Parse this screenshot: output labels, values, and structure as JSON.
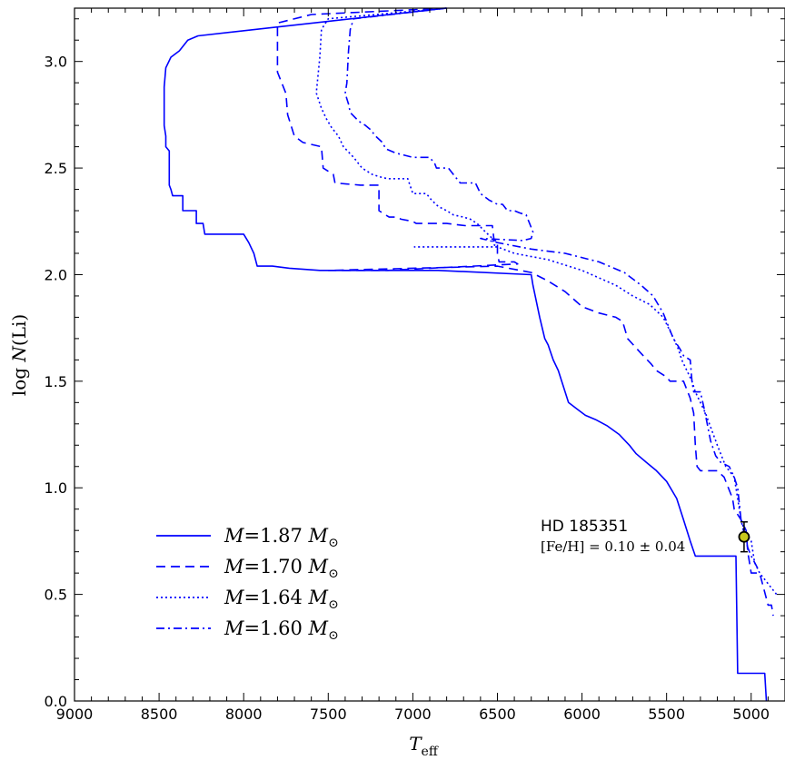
{
  "chart_data": {
    "type": "line",
    "xlabel": "T_eff",
    "ylabel": "log N(Li)",
    "xlim": [
      9000,
      4800
    ],
    "ylim": [
      0.0,
      3.25
    ],
    "x_inverted": true,
    "grid": false,
    "legend_position": "lower-left",
    "x_ticks": [
      "9000",
      "8500",
      "8000",
      "7500",
      "7000",
      "6500",
      "6000",
      "5500",
      "5000"
    ],
    "y_ticks": [
      "0.0",
      "0.5",
      "1.0",
      "1.5",
      "2.0",
      "2.5",
      "3.0"
    ],
    "series": [
      {
        "name": "M=1.87 M☉",
        "color": "#0000ff",
        "style": "solid",
        "points": [
          [
            6800,
            3.25
          ],
          [
            8270,
            3.12
          ],
          [
            8330,
            3.1
          ],
          [
            8380,
            3.05
          ],
          [
            8430,
            3.02
          ],
          [
            8460,
            2.97
          ],
          [
            8470,
            2.88
          ],
          [
            8470,
            2.7
          ],
          [
            8460,
            2.65
          ],
          [
            8460,
            2.6
          ],
          [
            8440,
            2.58
          ],
          [
            8440,
            2.42
          ],
          [
            8430,
            2.4
          ],
          [
            8420,
            2.37
          ],
          [
            8360,
            2.37
          ],
          [
            8360,
            2.3
          ],
          [
            8280,
            2.3
          ],
          [
            8280,
            2.24
          ],
          [
            8240,
            2.24
          ],
          [
            8230,
            2.19
          ],
          [
            8120,
            2.19
          ],
          [
            8000,
            2.19
          ],
          [
            7970,
            2.15
          ],
          [
            7940,
            2.1
          ],
          [
            7920,
            2.04
          ],
          [
            7830,
            2.04
          ],
          [
            7730,
            2.03
          ],
          [
            7550,
            2.02
          ],
          [
            6850,
            2.02
          ],
          [
            6300,
            2.0
          ],
          [
            6290,
            1.95
          ],
          [
            6250,
            1.8
          ],
          [
            6220,
            1.7
          ],
          [
            6200,
            1.67
          ],
          [
            6170,
            1.6
          ],
          [
            6140,
            1.55
          ],
          [
            6120,
            1.5
          ],
          [
            6100,
            1.45
          ],
          [
            6080,
            1.4
          ],
          [
            6030,
            1.37
          ],
          [
            5980,
            1.34
          ],
          [
            5920,
            1.32
          ],
          [
            5850,
            1.29
          ],
          [
            5780,
            1.25
          ],
          [
            5720,
            1.2
          ],
          [
            5700,
            1.18
          ],
          [
            5680,
            1.16
          ],
          [
            5620,
            1.12
          ],
          [
            5560,
            1.08
          ],
          [
            5500,
            1.03
          ],
          [
            5440,
            0.95
          ],
          [
            5400,
            0.85
          ],
          [
            5360,
            0.75
          ],
          [
            5330,
            0.68
          ],
          [
            5090,
            0.68
          ],
          [
            5080,
            0.13
          ],
          [
            4920,
            0.13
          ],
          [
            4910,
            0.0
          ]
        ]
      },
      {
        "name": "M=1.70 M☉",
        "color": "#0000ff",
        "style": "dashed",
        "points": [
          [
            6800,
            3.25
          ],
          [
            7600,
            3.22
          ],
          [
            7800,
            3.18
          ],
          [
            7800,
            2.95
          ],
          [
            7750,
            2.85
          ],
          [
            7740,
            2.75
          ],
          [
            7700,
            2.65
          ],
          [
            7650,
            2.62
          ],
          [
            7540,
            2.6
          ],
          [
            7530,
            2.5
          ],
          [
            7470,
            2.47
          ],
          [
            7460,
            2.43
          ],
          [
            7310,
            2.42
          ],
          [
            7200,
            2.42
          ],
          [
            7200,
            2.3
          ],
          [
            7140,
            2.27
          ],
          [
            7090,
            2.27
          ],
          [
            7070,
            2.26
          ],
          [
            7000,
            2.25
          ],
          [
            6980,
            2.24
          ],
          [
            6800,
            2.24
          ],
          [
            6690,
            2.23
          ],
          [
            6530,
            2.23
          ],
          [
            6520,
            2.16
          ],
          [
            6500,
            2.16
          ],
          [
            6500,
            2.1
          ],
          [
            6490,
            2.06
          ],
          [
            6400,
            2.06
          ],
          [
            6380,
            2.05
          ],
          [
            6900,
            2.03
          ],
          [
            7150,
            2.02
          ],
          [
            7500,
            2.02
          ],
          [
            6500,
            2.04
          ],
          [
            6300,
            2.01
          ],
          [
            6200,
            1.97
          ],
          [
            6100,
            1.92
          ],
          [
            6000,
            1.85
          ],
          [
            5900,
            1.82
          ],
          [
            5800,
            1.8
          ],
          [
            5760,
            1.78
          ],
          [
            5730,
            1.7
          ],
          [
            5650,
            1.63
          ],
          [
            5590,
            1.58
          ],
          [
            5560,
            1.55
          ],
          [
            5500,
            1.52
          ],
          [
            5480,
            1.5
          ],
          [
            5400,
            1.5
          ],
          [
            5360,
            1.42
          ],
          [
            5340,
            1.35
          ],
          [
            5330,
            1.2
          ],
          [
            5320,
            1.1
          ],
          [
            5300,
            1.08
          ],
          [
            5200,
            1.08
          ],
          [
            5160,
            1.05
          ],
          [
            5110,
            0.95
          ],
          [
            5100,
            0.9
          ],
          [
            5060,
            0.85
          ],
          [
            5030,
            0.8
          ],
          [
            5020,
            0.7
          ],
          [
            5000,
            0.6
          ],
          [
            4950,
            0.6
          ],
          [
            4900,
            0.45
          ],
          [
            4880,
            0.45
          ],
          [
            4870,
            0.4
          ]
        ]
      },
      {
        "name": "M=1.64 M☉",
        "color": "#0000ff",
        "style": "dotted",
        "points": [
          [
            6800,
            3.25
          ],
          [
            7500,
            3.2
          ],
          [
            7540,
            3.15
          ],
          [
            7550,
            3.02
          ],
          [
            7570,
            2.86
          ],
          [
            7570,
            2.85
          ],
          [
            7540,
            2.78
          ],
          [
            7510,
            2.73
          ],
          [
            7480,
            2.69
          ],
          [
            7440,
            2.65
          ],
          [
            7410,
            2.6
          ],
          [
            7350,
            2.55
          ],
          [
            7300,
            2.5
          ],
          [
            7240,
            2.47
          ],
          [
            7200,
            2.46
          ],
          [
            7150,
            2.45
          ],
          [
            7030,
            2.45
          ],
          [
            7000,
            2.38
          ],
          [
            6920,
            2.38
          ],
          [
            6890,
            2.35
          ],
          [
            6850,
            2.32
          ],
          [
            6800,
            2.3
          ],
          [
            6760,
            2.28
          ],
          [
            6700,
            2.27
          ],
          [
            6660,
            2.26
          ],
          [
            6620,
            2.24
          ],
          [
            6570,
            2.2
          ],
          [
            6530,
            2.17
          ],
          [
            6520,
            2.14
          ],
          [
            6500,
            2.13
          ],
          [
            6990,
            2.13
          ],
          [
            6500,
            2.13
          ],
          [
            6400,
            2.1
          ],
          [
            6200,
            2.07
          ],
          [
            6000,
            2.02
          ],
          [
            5800,
            1.95
          ],
          [
            5700,
            1.9
          ],
          [
            5600,
            1.86
          ],
          [
            5520,
            1.8
          ],
          [
            5470,
            1.72
          ],
          [
            5430,
            1.65
          ],
          [
            5410,
            1.6
          ],
          [
            5380,
            1.55
          ],
          [
            5350,
            1.5
          ],
          [
            5330,
            1.45
          ],
          [
            5300,
            1.4
          ],
          [
            5270,
            1.35
          ],
          [
            5200,
            1.2
          ],
          [
            5150,
            1.1
          ],
          [
            5100,
            1.05
          ],
          [
            5080,
            0.95
          ],
          [
            5060,
            0.85
          ],
          [
            5040,
            0.8
          ],
          [
            5000,
            0.75
          ],
          [
            4980,
            0.65
          ],
          [
            4950,
            0.6
          ],
          [
            4900,
            0.55
          ],
          [
            4850,
            0.5
          ]
        ]
      },
      {
        "name": "M=1.60 M☉",
        "color": "#0000ff",
        "style": "dashdot",
        "points": [
          [
            6800,
            3.25
          ],
          [
            7350,
            3.2
          ],
          [
            7370,
            3.15
          ],
          [
            7380,
            3.05
          ],
          [
            7390,
            2.9
          ],
          [
            7400,
            2.85
          ],
          [
            7380,
            2.8
          ],
          [
            7370,
            2.76
          ],
          [
            7320,
            2.72
          ],
          [
            7280,
            2.7
          ],
          [
            7250,
            2.68
          ],
          [
            7220,
            2.65
          ],
          [
            7180,
            2.62
          ],
          [
            7160,
            2.59
          ],
          [
            7100,
            2.57
          ],
          [
            7000,
            2.55
          ],
          [
            6900,
            2.55
          ],
          [
            6870,
            2.52
          ],
          [
            6860,
            2.5
          ],
          [
            6790,
            2.5
          ],
          [
            6750,
            2.46
          ],
          [
            6720,
            2.43
          ],
          [
            6630,
            2.43
          ],
          [
            6600,
            2.38
          ],
          [
            6550,
            2.35
          ],
          [
            6500,
            2.33
          ],
          [
            6470,
            2.33
          ],
          [
            6440,
            2.3
          ],
          [
            6400,
            2.3
          ],
          [
            6370,
            2.29
          ],
          [
            6330,
            2.28
          ],
          [
            6310,
            2.24
          ],
          [
            6290,
            2.2
          ],
          [
            6300,
            2.17
          ],
          [
            6350,
            2.16
          ],
          [
            6600,
            2.17
          ],
          [
            6500,
            2.15
          ],
          [
            6300,
            2.12
          ],
          [
            6100,
            2.1
          ],
          [
            5900,
            2.06
          ],
          [
            5750,
            2.01
          ],
          [
            5650,
            1.95
          ],
          [
            5580,
            1.9
          ],
          [
            5520,
            1.82
          ],
          [
            5460,
            1.7
          ],
          [
            5420,
            1.65
          ],
          [
            5400,
            1.62
          ],
          [
            5360,
            1.6
          ],
          [
            5350,
            1.5
          ],
          [
            5340,
            1.45
          ],
          [
            5300,
            1.45
          ],
          [
            5280,
            1.38
          ],
          [
            5260,
            1.3
          ],
          [
            5240,
            1.22
          ],
          [
            5210,
            1.15
          ],
          [
            5180,
            1.12
          ],
          [
            5130,
            1.1
          ],
          [
            5100,
            1.05
          ],
          [
            5080,
            1.0
          ],
          [
            5060,
            0.85
          ],
          [
            5040,
            0.78
          ],
          [
            5020,
            0.72
          ],
          [
            5000,
            0.68
          ],
          [
            4960,
            0.62
          ]
        ]
      }
    ],
    "star": {
      "name": "HD 185351",
      "feh_label": "[Fe/H] = 0.10 ± 0.04",
      "teff": 5042,
      "logN": 0.77,
      "err": 0.07,
      "marker_color": "#c8c81e"
    }
  }
}
